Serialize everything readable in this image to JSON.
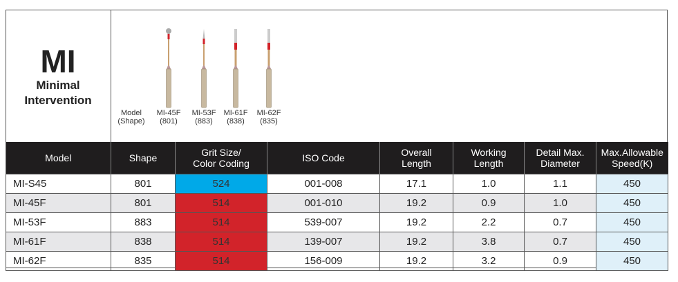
{
  "title": "MI",
  "subtitle_1": "Minimal",
  "subtitle_2": "Intervention",
  "image_captions": {
    "label": [
      "Model",
      "(Shape)"
    ],
    "burrs": [
      [
        "MI-45F",
        "(801)"
      ],
      [
        "MI-53F",
        "(883)"
      ],
      [
        "MI-61F",
        "(838)"
      ],
      [
        "MI-62F",
        "(835)"
      ]
    ]
  },
  "headers": [
    [
      "Model"
    ],
    [
      "Shape"
    ],
    [
      "Grit Size/",
      "Color Coding"
    ],
    [
      "ISO Code"
    ],
    [
      "Overall",
      "Length"
    ],
    [
      "Working",
      "Length"
    ],
    [
      "Detail Max.",
      "Diameter"
    ],
    [
      "Max.Allowable",
      "Speed(K)"
    ]
  ],
  "colors": {
    "blue": "#00a9e8",
    "red": "#d2232a"
  },
  "rows": [
    [
      "MI-S45",
      "801",
      "524",
      "001-008",
      "17.1",
      "1.0",
      "1.1",
      "450"
    ],
    [
      "MI-45F",
      "801",
      "514",
      "001-010",
      "19.2",
      "0.9",
      "1.0",
      "450"
    ],
    [
      "MI-53F",
      "883",
      "514",
      "539-007",
      "19.2",
      "2.2",
      "0.7",
      "450"
    ],
    [
      "MI-61F",
      "838",
      "514",
      "139-007",
      "19.2",
      "3.8",
      "0.7",
      "450"
    ],
    [
      "MI-62F",
      "835",
      "514",
      "156-009",
      "19.2",
      "3.2",
      "0.9",
      "450"
    ]
  ],
  "grit_colors": [
    "blue",
    "red",
    "red",
    "red",
    "red"
  ]
}
